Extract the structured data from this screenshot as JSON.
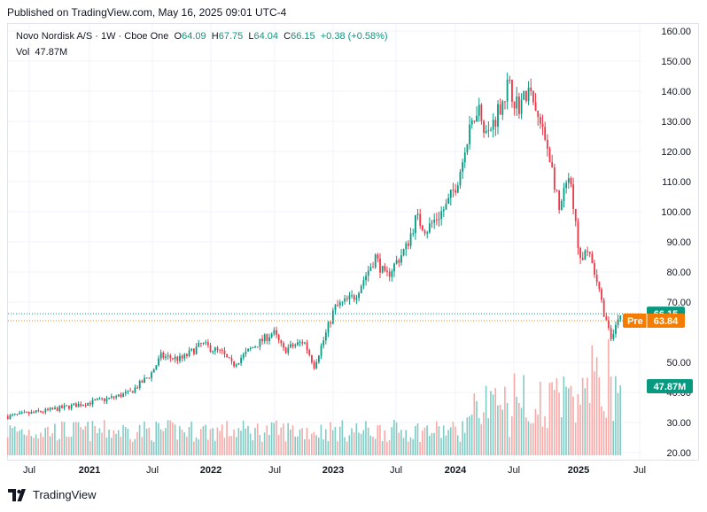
{
  "published": "Published on TradingView.com, May 16, 2025 09:01 UTC-4",
  "legend": {
    "symbol": "Novo Nordisk A/S · 1W · Cboe One",
    "open_label": "O",
    "open": "64.09",
    "high_label": "H",
    "high": "67.75",
    "low_label": "L",
    "low": "64.04",
    "close_label": "C",
    "close": "66.15",
    "change": "+0.38 (+0.58%)",
    "vol_label": "Vol",
    "vol": "47.87M"
  },
  "footer": {
    "brand": "TradingView",
    "logo_icon": "tradingview-logo-icon"
  },
  "colors": {
    "up": "#089981",
    "down": "#f23645",
    "pre": "#f57c00",
    "grid": "#f0f3fa",
    "vol_up": "#80cbc4",
    "vol_down": "#f7a9a7"
  },
  "chart_data": {
    "type": "candlestick",
    "y_ticks": [
      "160.00",
      "150.00",
      "140.00",
      "130.00",
      "120.00",
      "110.00",
      "100.00",
      "90.00",
      "80.00",
      "70.00",
      "50.00",
      "40.00",
      "30.00",
      "20.00"
    ],
    "x_ticks": [
      "Jul",
      "2021",
      "Jul",
      "2022",
      "Jul",
      "2023",
      "Jul",
      "2024",
      "Jul",
      "2025",
      "Jul"
    ],
    "ylim": [
      20,
      160
    ],
    "last_price": {
      "value": 66.15,
      "label": "66.15"
    },
    "pre_price": {
      "prefix": "Pre",
      "value": 63.84,
      "label": "63.84"
    },
    "volume_tag": {
      "label": "47.87M"
    },
    "price_path": [
      [
        "2020-05",
        32
      ],
      [
        "2020-09",
        34
      ],
      [
        "2020-12",
        36
      ],
      [
        "2021-03",
        38
      ],
      [
        "2021-05",
        40
      ],
      [
        "2021-07",
        46
      ],
      [
        "2021-08",
        52
      ],
      [
        "2021-10",
        51
      ],
      [
        "2021-12",
        56
      ],
      [
        "2022-02",
        53
      ],
      [
        "2022-03",
        49
      ],
      [
        "2022-05",
        55
      ],
      [
        "2022-07",
        60
      ],
      [
        "2022-08",
        54
      ],
      [
        "2022-10",
        57
      ],
      [
        "2022-11",
        49
      ],
      [
        "2022-12",
        58
      ],
      [
        "2023-01",
        68
      ],
      [
        "2023-03",
        72
      ],
      [
        "2023-05",
        85
      ],
      [
        "2023-06",
        78
      ],
      [
        "2023-08",
        88
      ],
      [
        "2023-09",
        98
      ],
      [
        "2023-10",
        94
      ],
      [
        "2023-12",
        102
      ],
      [
        "2024-01",
        110
      ],
      [
        "2024-03",
        136
      ],
      [
        "2024-04",
        125
      ],
      [
        "2024-06",
        142
      ],
      [
        "2024-07",
        135
      ],
      [
        "2024-08",
        140
      ],
      [
        "2024-10",
        120
      ],
      [
        "2024-11",
        100
      ],
      [
        "2024-12",
        112
      ],
      [
        "2025-01",
        85
      ],
      [
        "2025-02",
        85
      ],
      [
        "2025-03",
        72
      ],
      [
        "2025-04",
        58
      ],
      [
        "2025-05",
        66.15
      ]
    ]
  }
}
